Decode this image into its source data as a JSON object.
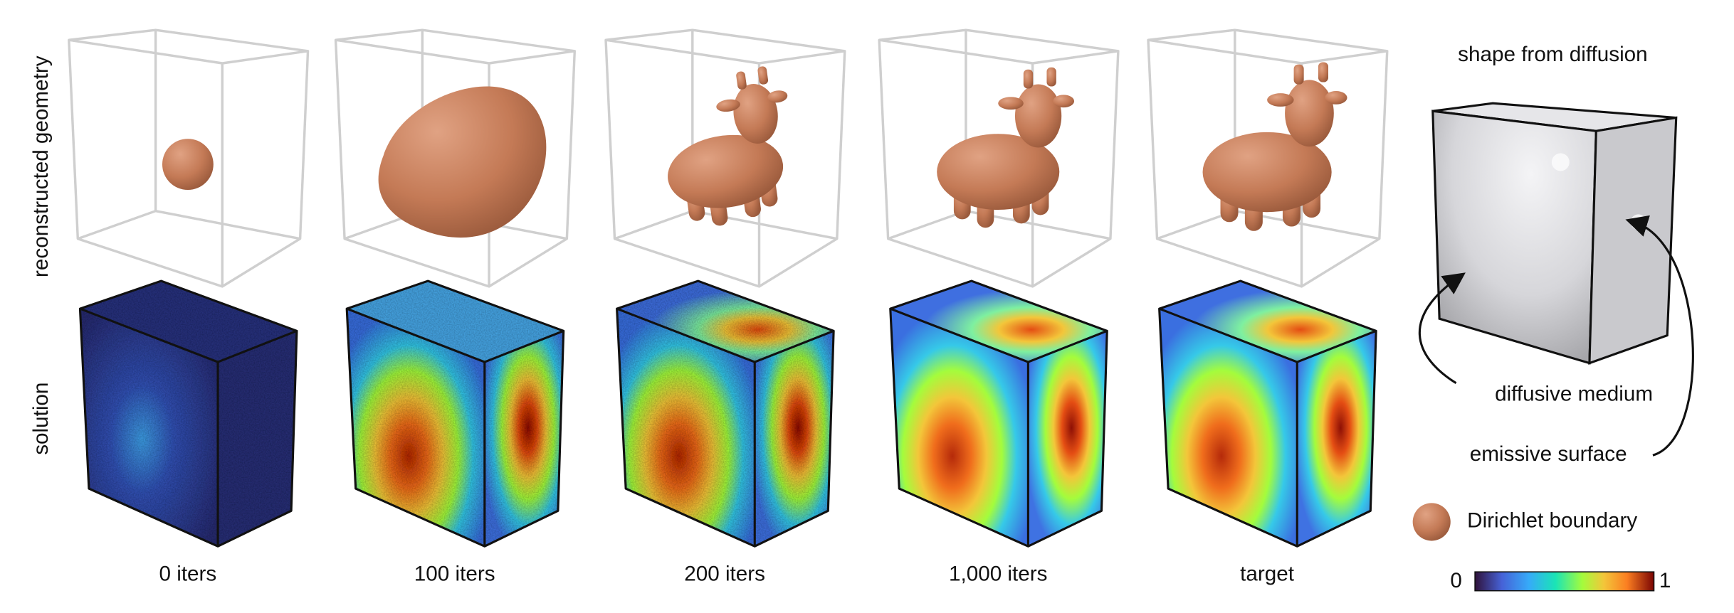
{
  "row_labels": [
    "reconstructed geometry",
    "solution"
  ],
  "columns": [
    "0 iters",
    "100 iters",
    "200 iters",
    "1,000 iters",
    "target"
  ],
  "legend": {
    "title": "shape from diffusion",
    "medium": "diffusive medium",
    "surface": "emissive surface",
    "boundary": "Dirichlet boundary"
  },
  "colorbar": {
    "min": "0",
    "max": "1"
  }
}
